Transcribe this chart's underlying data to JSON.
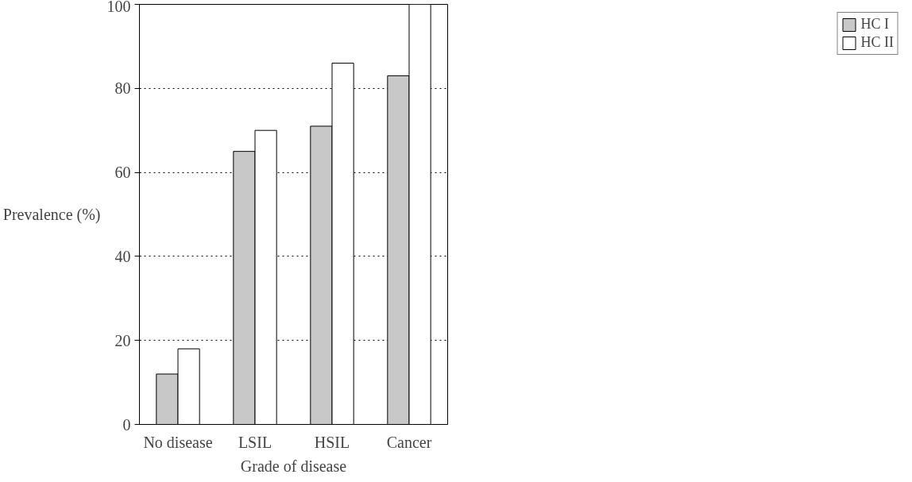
{
  "chart_data": {
    "type": "bar",
    "xlabel": "Grade of disease",
    "ylabel": "Prevalence (%)",
    "categories": [
      "No disease",
      "LSIL",
      "HSIL",
      "Cancer"
    ],
    "series": [
      {
        "name": "HC I",
        "color": "#c8c8c8",
        "values": [
          12,
          65,
          71,
          83
        ]
      },
      {
        "name": "HC II",
        "color": "#ffffff",
        "values": [
          18,
          70,
          86,
          100
        ]
      }
    ],
    "ylim": [
      0,
      100
    ],
    "yticks": [
      0,
      20,
      40,
      60,
      80,
      100
    ],
    "grid": "y",
    "legend": "right"
  }
}
